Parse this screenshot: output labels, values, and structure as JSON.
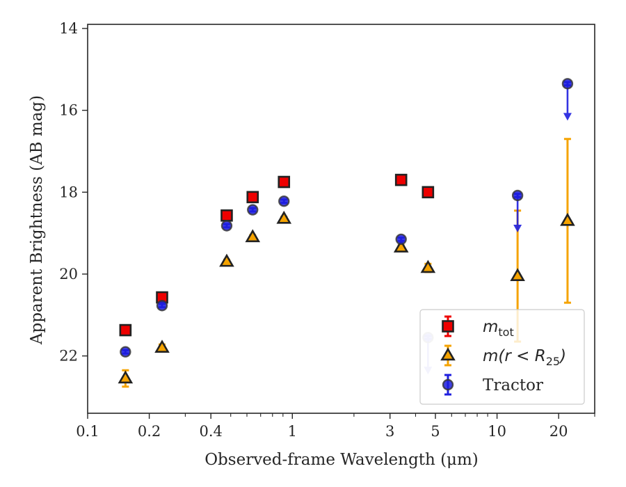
{
  "chart_data": {
    "type": "scatter",
    "xlabel": "Observed-frame Wavelength (μm)",
    "ylabel": "Apparent Brightness (AB mag)",
    "xscale": "log",
    "xlim": [
      0.1,
      30
    ],
    "ylim": [
      23.4,
      13.9
    ],
    "y_inverted": true,
    "x_ticks": [
      {
        "value": 0.1,
        "label": "0.1"
      },
      {
        "value": 0.2,
        "label": "0.2"
      },
      {
        "value": 0.4,
        "label": "0.4"
      },
      {
        "value": 1,
        "label": "1"
      },
      {
        "value": 3,
        "label": "3"
      },
      {
        "value": 5,
        "label": "5"
      },
      {
        "value": 10,
        "label": "10"
      },
      {
        "value": 20,
        "label": "20"
      }
    ],
    "x_minor_ticks": [
      0.3,
      0.5,
      0.6,
      0.7,
      0.8,
      0.9,
      2,
      4,
      6,
      7,
      8,
      9,
      30
    ],
    "y_ticks": [
      {
        "value": 14,
        "label": "14"
      },
      {
        "value": 16,
        "label": "16"
      },
      {
        "value": 18,
        "label": "18"
      },
      {
        "value": 20,
        "label": "20"
      },
      {
        "value": 22,
        "label": "22"
      }
    ],
    "grid": false,
    "legend": {
      "placement": "lower-right",
      "entries": [
        {
          "series": "m_tot",
          "prefix": "m",
          "sub": "tot",
          "suffix": ""
        },
        {
          "series": "m_r25",
          "prefix": "m(r < R",
          "sub": "25",
          "suffix": ")"
        },
        {
          "series": "tractor",
          "text": "Tractor"
        }
      ]
    },
    "series": [
      {
        "key": "m_tot",
        "name": "m_tot",
        "marker": "square",
        "color": "#ee0000",
        "edge_color": "#222222",
        "points": [
          {
            "x": 0.153,
            "y": 21.37,
            "err": 0.05
          },
          {
            "x": 0.231,
            "y": 20.57,
            "err": 0.05
          },
          {
            "x": 0.478,
            "y": 18.57,
            "err": 0.04
          },
          {
            "x": 0.64,
            "y": 18.12,
            "err": 0.04
          },
          {
            "x": 0.91,
            "y": 17.75,
            "err": 0.04
          },
          {
            "x": 3.4,
            "y": 17.7,
            "err": 0.04
          },
          {
            "x": 4.6,
            "y": 18.0,
            "err": 0.04
          }
        ]
      },
      {
        "key": "m_r25",
        "name": "m(r < R25)",
        "marker": "triangle",
        "color": "#f5a300",
        "edge_color": "#222222",
        "points": [
          {
            "x": 0.153,
            "y": 22.55,
            "err": 0.2
          },
          {
            "x": 0.231,
            "y": 21.8,
            "err": 0.08
          },
          {
            "x": 0.478,
            "y": 19.7,
            "err": 0.05
          },
          {
            "x": 0.64,
            "y": 19.1,
            "err": 0.05
          },
          {
            "x": 0.91,
            "y": 18.65,
            "err": 0.05
          },
          {
            "x": 3.4,
            "y": 19.35,
            "err": 0.05
          },
          {
            "x": 4.6,
            "y": 19.85,
            "err": 0.1
          },
          {
            "x": 12.6,
            "y": 20.05,
            "err": 1.6
          },
          {
            "x": 22.1,
            "y": 18.7,
            "err": 2.0
          }
        ]
      },
      {
        "key": "tractor",
        "name": "Tractor",
        "marker": "circle",
        "color": "#1f1fdf",
        "edge_color": "#333333",
        "points": [
          {
            "x": 0.153,
            "y": 21.9,
            "err": 0.04
          },
          {
            "x": 0.231,
            "y": 20.77,
            "err": 0.04
          },
          {
            "x": 0.478,
            "y": 18.82,
            "err": 0.04
          },
          {
            "x": 0.64,
            "y": 18.43,
            "err": 0.04
          },
          {
            "x": 0.91,
            "y": 18.22,
            "err": 0.04
          },
          {
            "x": 3.4,
            "y": 19.15,
            "err": 0.04
          },
          {
            "x": 4.6,
            "y": 21.55,
            "err": 0.04,
            "upper_limit": true
          },
          {
            "x": 12.6,
            "y": 18.08,
            "err": 0.04,
            "upper_limit": true
          },
          {
            "x": 22.1,
            "y": 15.35,
            "err": 0.04,
            "upper_limit": true
          }
        ]
      }
    ]
  }
}
